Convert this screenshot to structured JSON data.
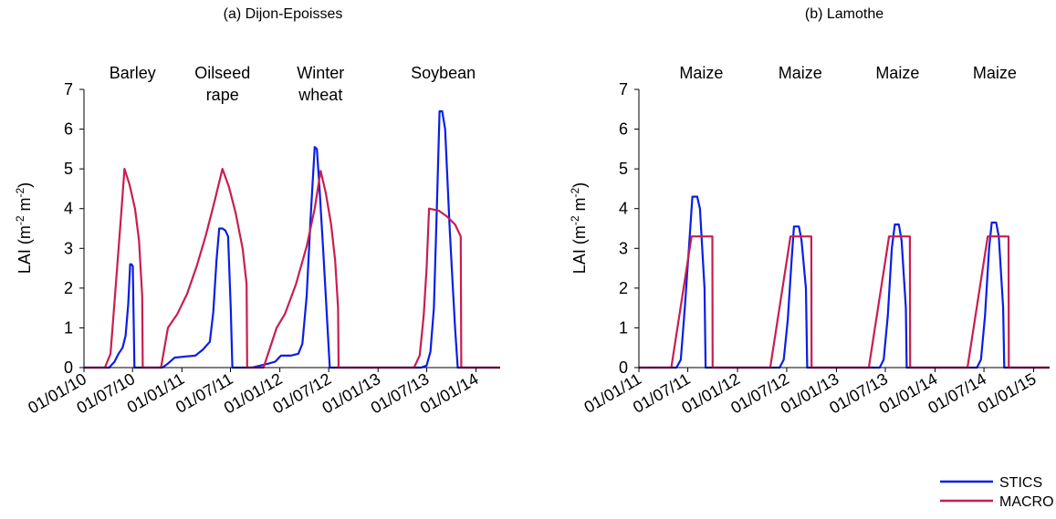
{
  "colors": {
    "STICS": "#0a1ee6",
    "MACRO": "#c81e50",
    "axis": "#000000"
  },
  "legend": [
    {
      "name": "STICS",
      "color": "#0a1ee6"
    },
    {
      "name": "MACRO",
      "color": "#c81e50"
    }
  ],
  "chart_data": [
    {
      "type": "line",
      "title": "(a) Dijon-Epoisses",
      "ylabel": "LAI (m-2 m-2)",
      "ylim": [
        0,
        7
      ],
      "yticks": [
        "0",
        "1",
        "2",
        "3",
        "4",
        "5",
        "6",
        "7"
      ],
      "xlim": [
        "2010-01-01",
        "2014-04-01"
      ],
      "xticks": [
        {
          "date": "2010-01-01",
          "label": "01/01/10"
        },
        {
          "date": "2010-07-01",
          "label": "01/07/10"
        },
        {
          "date": "2011-01-01",
          "label": "01/01/11"
        },
        {
          "date": "2011-07-01",
          "label": "01/07/11"
        },
        {
          "date": "2012-01-01",
          "label": "01/01/12"
        },
        {
          "date": "2012-07-01",
          "label": "01/07/12"
        },
        {
          "date": "2013-01-01",
          "label": "01/01/13"
        },
        {
          "date": "2013-07-01",
          "label": "01/07/13"
        },
        {
          "date": "2014-01-01",
          "label": "01/01/14"
        }
      ],
      "crops": [
        {
          "lines": [
            "Barley"
          ],
          "date": "2010-07-01"
        },
        {
          "lines": [
            "Oilseed",
            "rape"
          ],
          "date": "2011-06-01"
        },
        {
          "lines": [
            "Winter",
            "wheat"
          ],
          "date": "2012-06-01"
        },
        {
          "lines": [
            "Soybean"
          ],
          "date": "2013-09-01"
        }
      ],
      "series": [
        {
          "name": "STICS",
          "points": [
            [
              "2010-01-01",
              0
            ],
            [
              "2010-04-05",
              0
            ],
            [
              "2010-04-25",
              0.15
            ],
            [
              "2010-05-10",
              0.35
            ],
            [
              "2010-05-25",
              0.5
            ],
            [
              "2010-06-05",
              0.8
            ],
            [
              "2010-06-15",
              1.6
            ],
            [
              "2010-06-22",
              2.6
            ],
            [
              "2010-06-27",
              2.6
            ],
            [
              "2010-07-02",
              2.55
            ],
            [
              "2010-07-08",
              0
            ],
            [
              "2010-10-20",
              0
            ],
            [
              "2010-11-10",
              0.1
            ],
            [
              "2010-12-05",
              0.25
            ],
            [
              "2011-01-15",
              0.28
            ],
            [
              "2011-02-20",
              0.3
            ],
            [
              "2011-03-20",
              0.45
            ],
            [
              "2011-04-15",
              0.65
            ],
            [
              "2011-04-28",
              1.4
            ],
            [
              "2011-05-10",
              2.7
            ],
            [
              "2011-05-20",
              3.5
            ],
            [
              "2011-06-01",
              3.5
            ],
            [
              "2011-06-12",
              3.45
            ],
            [
              "2011-06-22",
              3.3
            ],
            [
              "2011-07-02",
              1.5
            ],
            [
              "2011-07-08",
              0
            ],
            [
              "2011-09-20",
              0
            ],
            [
              "2011-10-20",
              0.05
            ],
            [
              "2011-11-20",
              0.1
            ],
            [
              "2011-12-15",
              0.15
            ],
            [
              "2012-01-05",
              0.3
            ],
            [
              "2012-02-10",
              0.3
            ],
            [
              "2012-03-10",
              0.35
            ],
            [
              "2012-03-25",
              0.6
            ],
            [
              "2012-04-10",
              1.8
            ],
            [
              "2012-04-25",
              3.8
            ],
            [
              "2012-05-10",
              5.55
            ],
            [
              "2012-05-18",
              5.5
            ],
            [
              "2012-05-28",
              4.5
            ],
            [
              "2012-06-10",
              3
            ],
            [
              "2012-06-25",
              1.2
            ],
            [
              "2012-07-05",
              0
            ],
            [
              "2013-06-10",
              0
            ],
            [
              "2013-07-01",
              0.05
            ],
            [
              "2013-07-15",
              0.4
            ],
            [
              "2013-07-28",
              1.5
            ],
            [
              "2013-08-08",
              4
            ],
            [
              "2013-08-18",
              6.45
            ],
            [
              "2013-08-28",
              6.45
            ],
            [
              "2013-09-08",
              6
            ],
            [
              "2013-09-18",
              4.5
            ],
            [
              "2013-09-25",
              3.5
            ],
            [
              "2013-10-05",
              2.2
            ],
            [
              "2013-10-15",
              1
            ],
            [
              "2013-10-25",
              0
            ],
            [
              "2014-04-01",
              0
            ]
          ]
        },
        {
          "name": "MACRO",
          "points": [
            [
              "2010-01-01",
              0
            ],
            [
              "2010-03-20",
              0
            ],
            [
              "2010-04-10",
              0.35
            ],
            [
              "2010-05-01",
              2.2
            ],
            [
              "2010-05-20",
              3.9
            ],
            [
              "2010-06-01",
              5
            ],
            [
              "2010-06-20",
              4.6
            ],
            [
              "2010-07-10",
              4
            ],
            [
              "2010-07-25",
              3.2
            ],
            [
              "2010-08-06",
              1.8
            ],
            [
              "2010-08-08",
              0
            ],
            [
              "2010-10-15",
              0
            ],
            [
              "2010-11-10",
              1
            ],
            [
              "2010-12-15",
              1.35
            ],
            [
              "2011-01-20",
              1.85
            ],
            [
              "2011-02-25",
              2.55
            ],
            [
              "2011-04-01",
              3.35
            ],
            [
              "2011-05-05",
              4.25
            ],
            [
              "2011-06-01",
              5
            ],
            [
              "2011-06-25",
              4.55
            ],
            [
              "2011-07-20",
              3.9
            ],
            [
              "2011-08-15",
              3
            ],
            [
              "2011-08-30",
              2.1
            ],
            [
              "2011-09-01",
              0
            ],
            [
              "2011-11-01",
              0
            ],
            [
              "2011-12-20",
              1
            ],
            [
              "2012-01-20",
              1.35
            ],
            [
              "2012-03-01",
              2.1
            ],
            [
              "2012-04-10",
              3.05
            ],
            [
              "2012-05-10",
              4
            ],
            [
              "2012-06-01",
              4.95
            ],
            [
              "2012-06-20",
              4.4
            ],
            [
              "2012-07-10",
              3.6
            ],
            [
              "2012-07-25",
              2.7
            ],
            [
              "2012-08-05",
              1.5
            ],
            [
              "2012-08-07",
              0
            ],
            [
              "2013-05-15",
              0
            ],
            [
              "2013-06-05",
              0.3
            ],
            [
              "2013-06-20",
              1.3
            ],
            [
              "2013-07-01",
              2.5
            ],
            [
              "2013-07-10",
              4
            ],
            [
              "2013-08-15",
              3.95
            ],
            [
              "2013-09-15",
              3.8
            ],
            [
              "2013-10-15",
              3.6
            ],
            [
              "2013-11-05",
              3.3
            ],
            [
              "2013-11-07",
              0
            ],
            [
              "2014-04-01",
              0
            ]
          ]
        }
      ]
    },
    {
      "type": "line",
      "title": "(b) Lamothe",
      "ylabel": "LAI (m-2 m-2)",
      "ylim": [
        0,
        7
      ],
      "yticks": [
        "0",
        "1",
        "2",
        "3",
        "4",
        "5",
        "6",
        "7"
      ],
      "xlim": [
        "2011-01-01",
        "2015-03-01"
      ],
      "xticks": [
        {
          "date": "2011-01-01",
          "label": "01/01/11"
        },
        {
          "date": "2011-07-01",
          "label": "01/07/11"
        },
        {
          "date": "2012-01-01",
          "label": "01/01/12"
        },
        {
          "date": "2012-07-01",
          "label": "01/07/12"
        },
        {
          "date": "2013-01-01",
          "label": "01/01/13"
        },
        {
          "date": "2013-07-01",
          "label": "01/07/13"
        },
        {
          "date": "2014-01-01",
          "label": "01/01/14"
        },
        {
          "date": "2014-07-01",
          "label": "01/07/14"
        },
        {
          "date": "2015-01-01",
          "label": "01/01/15"
        }
      ],
      "crops": [
        {
          "lines": [
            "Maize"
          ],
          "date": "2011-08-20"
        },
        {
          "lines": [
            "Maize"
          ],
          "date": "2012-08-20"
        },
        {
          "lines": [
            "Maize"
          ],
          "date": "2013-08-15"
        },
        {
          "lines": [
            "Maize"
          ],
          "date": "2014-08-10"
        }
      ],
      "series": [
        {
          "name": "STICS",
          "points": [
            [
              "2011-01-01",
              0
            ],
            [
              "2011-05-20",
              0
            ],
            [
              "2011-06-05",
              0.2
            ],
            [
              "2011-06-20",
              1.5
            ],
            [
              "2011-07-05",
              3
            ],
            [
              "2011-07-18",
              4.3
            ],
            [
              "2011-08-05",
              4.3
            ],
            [
              "2011-08-15",
              4
            ],
            [
              "2011-09-01",
              2
            ],
            [
              "2011-09-05",
              0
            ],
            [
              "2012-06-05",
              0
            ],
            [
              "2012-06-20",
              0.2
            ],
            [
              "2012-07-05",
              1.2
            ],
            [
              "2012-07-20",
              2.8
            ],
            [
              "2012-07-28",
              3.55
            ],
            [
              "2012-08-15",
              3.55
            ],
            [
              "2012-08-25",
              3.2
            ],
            [
              "2012-09-10",
              2
            ],
            [
              "2012-09-15",
              0
            ],
            [
              "2013-06-10",
              0
            ],
            [
              "2013-06-25",
              0.2
            ],
            [
              "2013-07-10",
              1.3
            ],
            [
              "2013-07-25",
              3
            ],
            [
              "2013-08-05",
              3.6
            ],
            [
              "2013-08-20",
              3.6
            ],
            [
              "2013-08-30",
              3.2
            ],
            [
              "2013-09-15",
              1.5
            ],
            [
              "2013-09-18",
              0
            ],
            [
              "2014-06-05",
              0
            ],
            [
              "2014-06-20",
              0.2
            ],
            [
              "2014-07-05",
              1.3
            ],
            [
              "2014-07-20",
              3
            ],
            [
              "2014-07-30",
              3.65
            ],
            [
              "2014-08-15",
              3.65
            ],
            [
              "2014-08-25",
              3.3
            ],
            [
              "2014-09-10",
              1.5
            ],
            [
              "2014-09-14",
              0
            ],
            [
              "2015-03-01",
              0
            ]
          ]
        },
        {
          "name": "MACRO",
          "points": [
            [
              "2011-01-01",
              0
            ],
            [
              "2011-05-01",
              0
            ],
            [
              "2011-07-15",
              3.3
            ],
            [
              "2011-09-30",
              3.3
            ],
            [
              "2011-10-01",
              0
            ],
            [
              "2012-05-01",
              0
            ],
            [
              "2012-07-15",
              3.3
            ],
            [
              "2012-09-30",
              3.3
            ],
            [
              "2012-10-01",
              0
            ],
            [
              "2013-05-01",
              0
            ],
            [
              "2013-07-15",
              3.3
            ],
            [
              "2013-09-30",
              3.3
            ],
            [
              "2013-10-01",
              0
            ],
            [
              "2014-05-01",
              0
            ],
            [
              "2014-07-15",
              3.3
            ],
            [
              "2014-09-30",
              3.3
            ],
            [
              "2014-10-01",
              0
            ],
            [
              "2015-03-01",
              0
            ]
          ]
        }
      ]
    }
  ]
}
